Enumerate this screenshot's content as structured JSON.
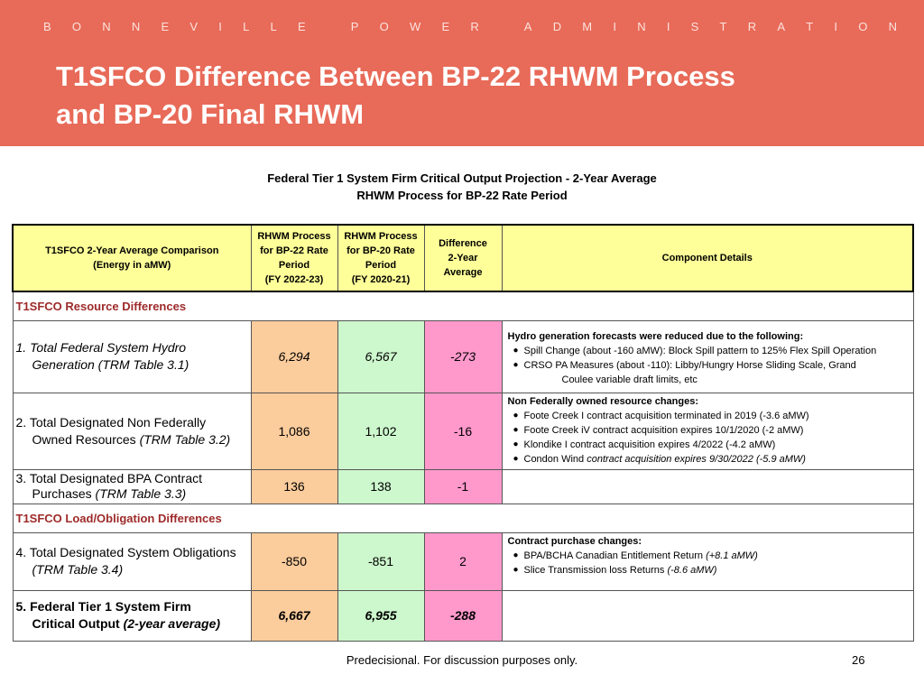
{
  "header": {
    "org_letters": [
      "B",
      "O",
      "N",
      "N",
      "E",
      "V",
      "I",
      "L",
      "L",
      "E",
      "",
      "P",
      "O",
      "W",
      "E",
      "R",
      "",
      "A",
      "D",
      "M",
      "I",
      "N",
      "I",
      "S",
      "T",
      "R",
      "A",
      "T",
      "I",
      "O",
      "N"
    ],
    "title_line1": "T1SFCO Difference Between BP-22 RHWM Process",
    "title_line2": "and BP-20 Final RHWM"
  },
  "subtitle": {
    "line1": "Federal Tier 1 System Firm Critical Output Projection - 2-Year Average",
    "line2": "RHWM Process for BP-22 Rate Period"
  },
  "table": {
    "headers": {
      "col1_line1": "T1SFCO 2-Year Average Comparison",
      "col1_line2": "(Energy in aMW)",
      "col2_line1": "RHWM Process",
      "col2_line2": "for BP-22 Rate",
      "col2_line3": "Period",
      "col2_line4": "(FY 2022-23)",
      "col3_line1": "RHWM Process",
      "col3_line2": "for BP-20 Rate",
      "col3_line3": "Period",
      "col3_line4": "(FY 2020-21)",
      "col4_line1": "Difference",
      "col4_line2": "2-Year",
      "col4_line3": "Average",
      "col5": "Component Details"
    },
    "section1": "T1SFCO Resource Differences",
    "section2": "T1SFCO Load/Obligation Differences",
    "rows": [
      {
        "label_line1": "1. Total Federal System Hydro",
        "label_line2": "Generation (TRM Table 3.1)",
        "bp22": "6,294",
        "bp20": "6,567",
        "diff": "-273",
        "details_head": "Hydro generation forecasts were reduced due to the following:",
        "details": [
          "Spill Change (about -160 aMW):  Block Spill pattern to 125% Flex Spill Operation",
          "CRSO PA Measures (about -110):  Libby/Hungry Horse Sliding Scale, Grand"
        ],
        "details_cont": "Coulee variable draft limits, etc"
      },
      {
        "label_line1": "2. Total Designated Non Federally",
        "label_line2a": "Owned Resources ",
        "label_line2b": "(TRM Table 3.2)",
        "bp22": "1,086",
        "bp20": "1,102",
        "diff": "-16",
        "details_head": "Non Federally owned resource changes:",
        "details": [
          "Foote Creek I contract acquisition terminated in 2019 (-3.6 aMW)",
          "Foote Creek iV contract acquisition expires 10/1/2020 (-2 aMW)",
          "Klondike I contract acquisition expires 4/2022 (-4.2 aMW)"
        ],
        "details_last_a": "Condon Wind ",
        "details_last_b": "contract acquisition expires 9/30/2022 (-5.9 aMW)"
      },
      {
        "label_line1": "3. Total Designated BPA Contract",
        "label_line2a": "Purchases ",
        "label_line2b": "(TRM Table 3.3)",
        "bp22": "136",
        "bp20": "138",
        "diff": "-1"
      },
      {
        "label_line1": "4. Total Designated System Obligations",
        "label_line2": "(TRM Table 3.4)",
        "bp22": "-850",
        "bp20": "-851",
        "diff": "2",
        "details_head": "Contract purchase changes:",
        "details_a1": "BPA/BCHA Canadian Entitlement Return ",
        "details_b1": "(+8.1 aMW)",
        "details_a2": "Slice Transmission loss Returns ",
        "details_b2": "(-8.6 aMW)"
      },
      {
        "label_line1": "5. Federal Tier 1 System Firm",
        "label_line2a": "Critical Output ",
        "label_line2b": "(2-year average)",
        "bp22": "6,667",
        "bp20": "6,955",
        "diff": "-288"
      }
    ]
  },
  "footer": {
    "text": "Predecisional. For discussion purposes only.",
    "page": "26"
  }
}
